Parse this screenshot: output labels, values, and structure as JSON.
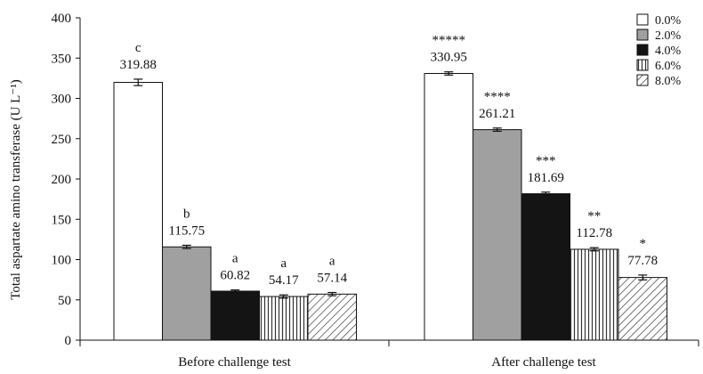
{
  "chart_data": {
    "type": "bar",
    "ylabel": "Total aspartate amino transferase (U L⁻¹)",
    "ylim": [
      0,
      400
    ],
    "yticks": [
      0,
      50,
      100,
      150,
      200,
      250,
      300,
      350,
      400
    ],
    "groups": [
      "Before challenge test",
      "After challenge test"
    ],
    "legend_position": "top-right",
    "series": [
      {
        "name": "0.0%",
        "fill": "#ffffff",
        "pattern": "solid",
        "values": [
          319.88,
          330.95
        ],
        "errors": [
          4,
          2
        ],
        "annotations": [
          "c",
          "*****"
        ]
      },
      {
        "name": "2.0%",
        "fill": "#a0a0a0",
        "pattern": "solid",
        "values": [
          115.75,
          261.21
        ],
        "errors": [
          2,
          2
        ],
        "annotations": [
          "b",
          "****"
        ]
      },
      {
        "name": "4.0%",
        "fill": "#141414",
        "pattern": "solid",
        "values": [
          60.82,
          181.69
        ],
        "errors": [
          1.5,
          2
        ],
        "annotations": [
          "a",
          "***"
        ]
      },
      {
        "name": "6.0%",
        "fill": "#ffffff",
        "pattern": "vertical-stripes",
        "values": [
          54.17,
          112.78
        ],
        "errors": [
          2,
          2
        ],
        "annotations": [
          "a",
          "**"
        ]
      },
      {
        "name": "8.0%",
        "fill": "#ffffff",
        "pattern": "diagonal-stripes",
        "values": [
          57.14,
          77.78
        ],
        "errors": [
          2,
          3
        ],
        "annotations": [
          "a",
          "*"
        ]
      }
    ],
    "value_labels": [
      [
        "319.88",
        "115.75",
        "60.82",
        "54.17",
        "57.14"
      ],
      [
        "330.95",
        "261.21",
        "181.69",
        "112.78",
        "77.78"
      ]
    ]
  }
}
